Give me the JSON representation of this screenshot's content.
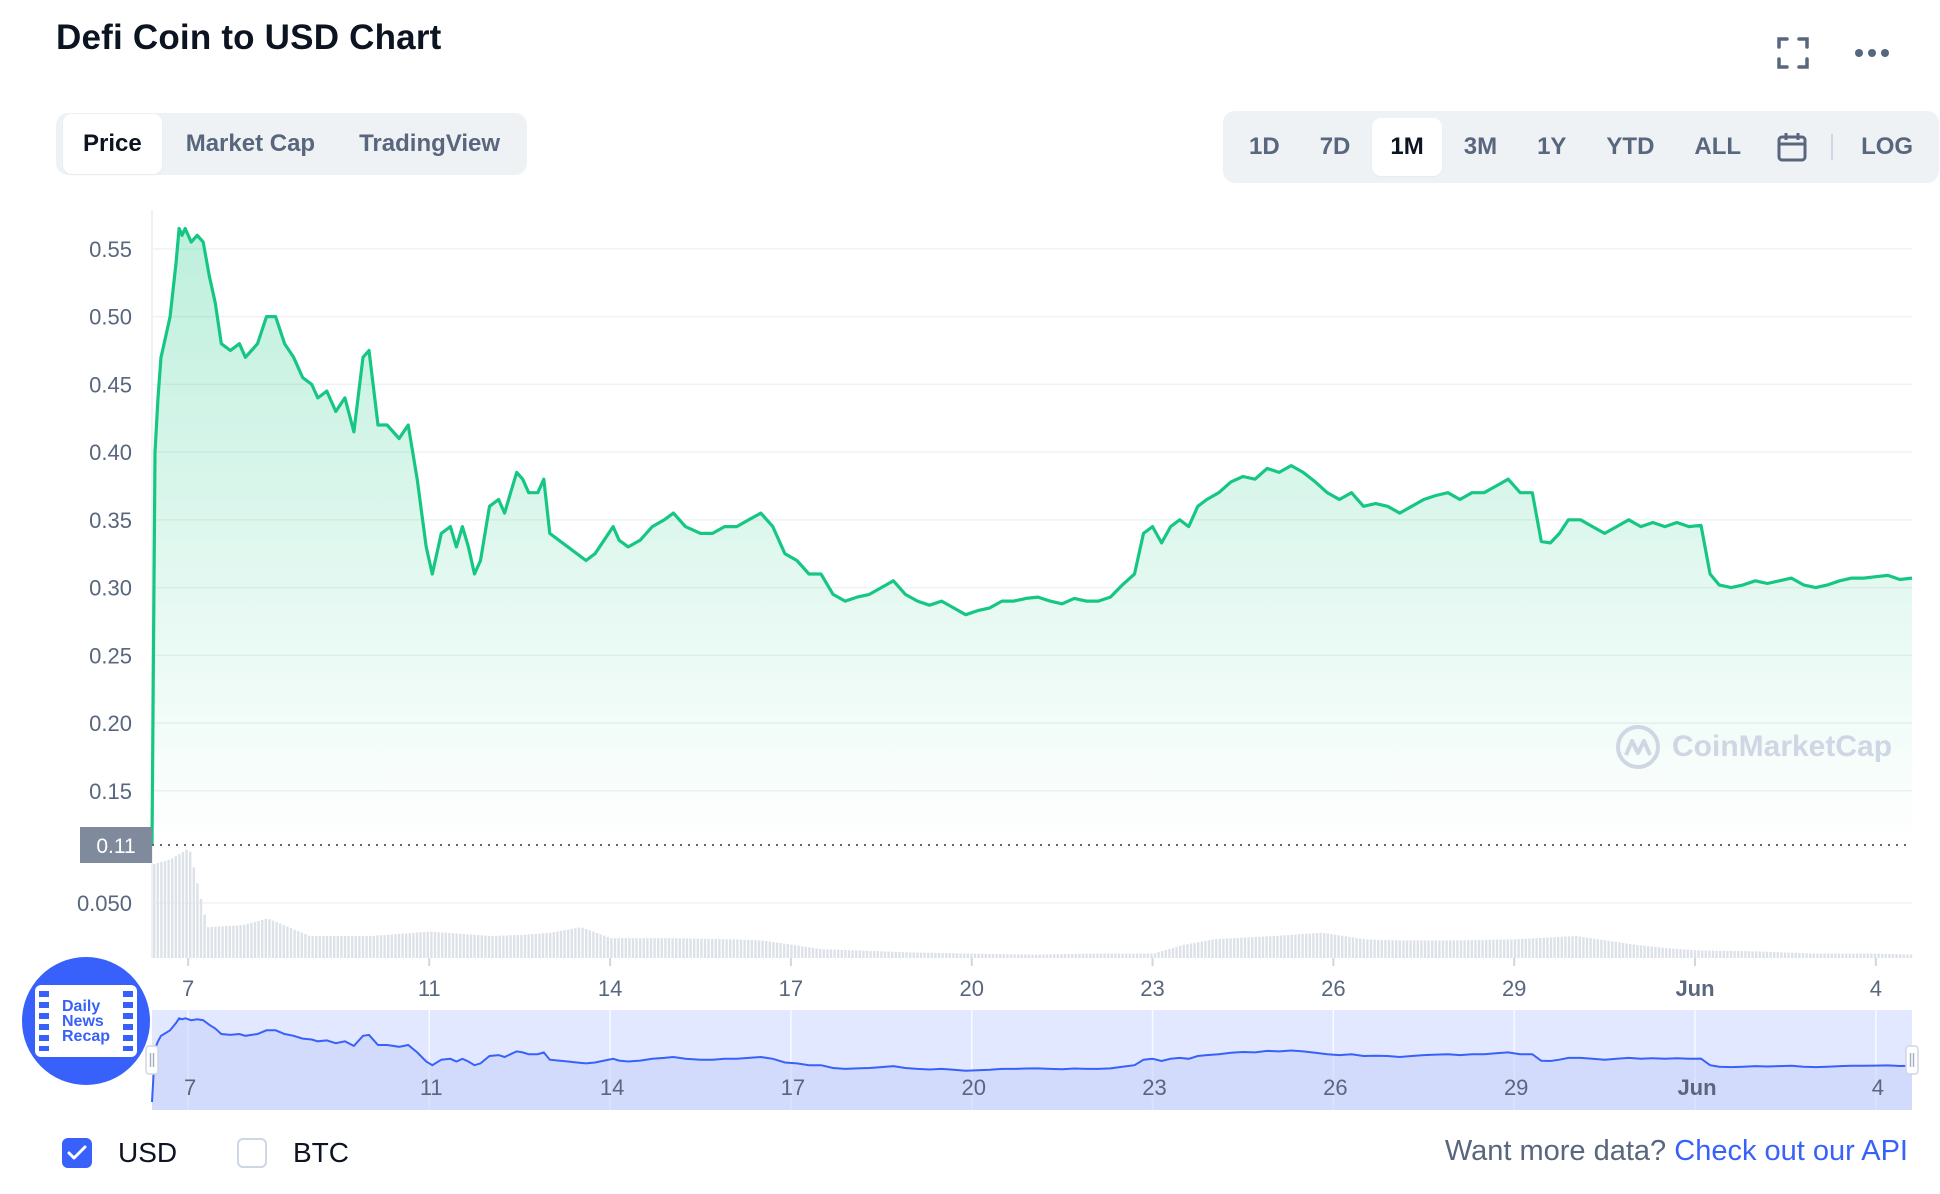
{
  "header": {
    "title": "Defi Coin to USD Chart"
  },
  "view_tabs": [
    "Price",
    "Market Cap",
    "TradingView"
  ],
  "view_tab_active": "Price",
  "range_tabs": [
    "1D",
    "7D",
    "1M",
    "3M",
    "1Y",
    "YTD",
    "ALL"
  ],
  "range_tab_active": "1M",
  "log_label": "LOG",
  "icons": {
    "fullscreen": "fullscreen-icon",
    "more": "more-horizontal-icon",
    "calendar": "calendar-icon",
    "check": "check-icon"
  },
  "watermark": "CoinMarketCap",
  "badge": {
    "line1": "Daily",
    "line2": "News",
    "line3": "Recap"
  },
  "currency": {
    "usd_label": "USD",
    "btc_label": "BTC",
    "usd_checked": true,
    "btc_checked": false
  },
  "footer": {
    "prompt": "Want more data?",
    "link": "Check out our API"
  },
  "colors": {
    "line": "#16c784",
    "navigator_line": "#3861fb",
    "navigator_fill": "#e2e8ff",
    "accent": "#3861fb",
    "grid": "#eff2f5",
    "muted_text": "#58667e"
  },
  "chart_data": {
    "type": "line",
    "title": "Defi Coin to USD Chart",
    "xlabel": "",
    "ylabel": "",
    "x_tick_labels": [
      "7",
      "11",
      "14",
      "17",
      "20",
      "23",
      "26",
      "29",
      "Jun",
      "4"
    ],
    "x_tick_days": [
      7,
      11,
      14,
      17,
      20,
      23,
      26,
      29,
      32,
      35
    ],
    "x_range_days": [
      6.4,
      35.6
    ],
    "y_tick_labels": [
      "0.55",
      "0.50",
      "0.45",
      "0.40",
      "0.35",
      "0.30",
      "0.25",
      "0.20",
      "0.15"
    ],
    "y_ticks": [
      0.55,
      0.5,
      0.45,
      0.4,
      0.35,
      0.3,
      0.25,
      0.2,
      0.15
    ],
    "ylim": [
      0.11,
      0.575
    ],
    "current_marker": {
      "label": "0.11",
      "value": 0.11
    },
    "volume_tick_label": "0.050",
    "volume_tick": 0.05,
    "grid": true,
    "series": [
      {
        "x": [
          6.4,
          6.45,
          6.5,
          6.55,
          6.6,
          6.7,
          6.8,
          6.85,
          6.9,
          6.95,
          7.05,
          7.15,
          7.25,
          7.35,
          7.45,
          7.55,
          7.7,
          7.85,
          7.95,
          8.05,
          8.15,
          8.3,
          8.45,
          8.6,
          8.75,
          8.9,
          9.05,
          9.15,
          9.3,
          9.45,
          9.6,
          9.75,
          9.9,
          10.0,
          10.15,
          10.3,
          10.5,
          10.65,
          10.8,
          10.95,
          11.05,
          11.2,
          11.35,
          11.45,
          11.55,
          11.65,
          11.75,
          11.85,
          12.0,
          12.15,
          12.25,
          12.35,
          12.45,
          12.55,
          12.65,
          12.8,
          12.9,
          13.0,
          13.15,
          13.3,
          13.45,
          13.6,
          13.75,
          13.9,
          14.05,
          14.15,
          14.3,
          14.5,
          14.7,
          14.9,
          15.05,
          15.25,
          15.5,
          15.7,
          15.9,
          16.1,
          16.3,
          16.5,
          16.7,
          16.9,
          17.1,
          17.3,
          17.5,
          17.7,
          17.9,
          18.1,
          18.3,
          18.5,
          18.7,
          18.9,
          19.1,
          19.3,
          19.5,
          19.7,
          19.9,
          20.1,
          20.3,
          20.5,
          20.7,
          20.9,
          21.1,
          21.3,
          21.5,
          21.7,
          21.9,
          22.1,
          22.3,
          22.5,
          22.7,
          22.85,
          23.0,
          23.15,
          23.3,
          23.45,
          23.6,
          23.75,
          23.9,
          24.1,
          24.3,
          24.5,
          24.7,
          24.9,
          25.1,
          25.3,
          25.5,
          25.7,
          25.9,
          26.1,
          26.3,
          26.5,
          26.7,
          26.9,
          27.1,
          27.3,
          27.5,
          27.7,
          27.9,
          28.1,
          28.3,
          28.5,
          28.7,
          28.9,
          29.1,
          29.3,
          29.45,
          29.6,
          29.75,
          29.9,
          30.1,
          30.3,
          30.5,
          30.7,
          30.9,
          31.1,
          31.3,
          31.5,
          31.7,
          31.9,
          32.1,
          32.25,
          32.4,
          32.6,
          32.8,
          33.0,
          33.2,
          33.4,
          33.6,
          33.8,
          34.0,
          34.2,
          34.4,
          34.6,
          34.8,
          35.0,
          35.2,
          35.4,
          35.6
        ],
        "values": [
          0.11,
          0.4,
          0.44,
          0.47,
          0.48,
          0.5,
          0.54,
          0.565,
          0.56,
          0.565,
          0.555,
          0.56,
          0.555,
          0.53,
          0.51,
          0.48,
          0.475,
          0.48,
          0.47,
          0.475,
          0.48,
          0.5,
          0.5,
          0.48,
          0.47,
          0.455,
          0.45,
          0.44,
          0.445,
          0.43,
          0.44,
          0.415,
          0.47,
          0.475,
          0.42,
          0.42,
          0.41,
          0.42,
          0.38,
          0.33,
          0.31,
          0.34,
          0.345,
          0.33,
          0.345,
          0.33,
          0.31,
          0.32,
          0.36,
          0.365,
          0.355,
          0.37,
          0.385,
          0.38,
          0.37,
          0.37,
          0.38,
          0.34,
          0.335,
          0.33,
          0.325,
          0.32,
          0.325,
          0.335,
          0.345,
          0.335,
          0.33,
          0.335,
          0.345,
          0.35,
          0.355,
          0.345,
          0.34,
          0.34,
          0.345,
          0.345,
          0.35,
          0.355,
          0.345,
          0.325,
          0.32,
          0.31,
          0.31,
          0.295,
          0.29,
          0.293,
          0.295,
          0.3,
          0.305,
          0.295,
          0.29,
          0.287,
          0.29,
          0.285,
          0.28,
          0.283,
          0.285,
          0.29,
          0.29,
          0.292,
          0.293,
          0.29,
          0.288,
          0.292,
          0.29,
          0.29,
          0.293,
          0.302,
          0.31,
          0.34,
          0.345,
          0.333,
          0.345,
          0.35,
          0.345,
          0.36,
          0.365,
          0.37,
          0.378,
          0.382,
          0.38,
          0.388,
          0.385,
          0.39,
          0.385,
          0.378,
          0.37,
          0.365,
          0.37,
          0.36,
          0.362,
          0.36,
          0.355,
          0.36,
          0.365,
          0.368,
          0.37,
          0.365,
          0.37,
          0.37,
          0.375,
          0.38,
          0.37,
          0.37,
          0.334,
          0.333,
          0.34,
          0.35,
          0.35,
          0.345,
          0.34,
          0.345,
          0.35,
          0.345,
          0.348,
          0.345,
          0.348,
          0.345,
          0.346,
          0.31,
          0.302,
          0.3,
          0.302,
          0.305,
          0.303,
          0.305,
          0.307,
          0.302,
          0.3,
          0.302,
          0.305,
          0.307,
          0.307,
          0.308,
          0.309,
          0.306,
          0.307
        ]
      }
    ],
    "volume": {
      "x": [
        6.4,
        6.7,
        7.0,
        7.3,
        7.9,
        8.3,
        9.0,
        10.0,
        11.0,
        12.0,
        12.5,
        13.0,
        13.5,
        14.0,
        15.0,
        16.0,
        16.5,
        17.0,
        17.5,
        18.0,
        19.0,
        20.0,
        21.0,
        22.0,
        23.0,
        23.5,
        24.0,
        25.0,
        25.8,
        26.5,
        27.0,
        28.0,
        29.0,
        30.0,
        31.0,
        31.5,
        32.0,
        33.0,
        34.0,
        35.0,
        35.6
      ],
      "values": [
        0.085,
        0.09,
        0.1,
        0.028,
        0.03,
        0.036,
        0.02,
        0.02,
        0.024,
        0.02,
        0.021,
        0.023,
        0.028,
        0.018,
        0.018,
        0.017,
        0.016,
        0.012,
        0.008,
        0.007,
        0.005,
        0.004,
        0.003,
        0.004,
        0.004,
        0.012,
        0.017,
        0.02,
        0.023,
        0.017,
        0.016,
        0.016,
        0.017,
        0.02,
        0.012,
        0.009,
        0.007,
        0.006,
        0.004,
        0.004,
        0.003
      ],
      "ylim": [
        0,
        0.1
      ]
    },
    "navigator": {
      "x_tick_labels": [
        "7",
        "11",
        "14",
        "17",
        "20",
        "23",
        "26",
        "29",
        "Jun",
        "4"
      ]
    }
  }
}
